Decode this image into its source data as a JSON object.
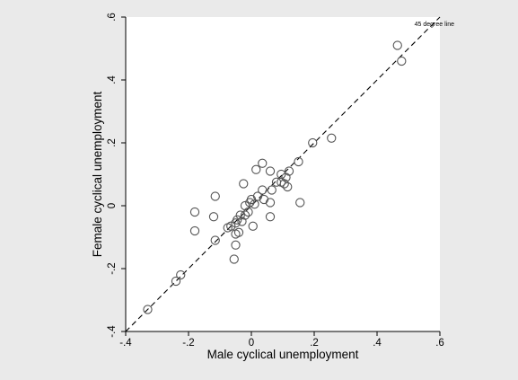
{
  "chart_data": {
    "type": "scatter",
    "title": "",
    "xlabel": "Male cyclical unemployment",
    "ylabel": "Female cyclical unemployment",
    "xlim": [
      -0.4,
      0.6
    ],
    "ylim": [
      -0.4,
      0.6
    ],
    "xticks": [
      -0.4,
      -0.2,
      0,
      0.2,
      0.4,
      0.6
    ],
    "xtick_labels": [
      "-.4",
      "-.2",
      "0",
      ".2",
      ".4",
      ".6"
    ],
    "yticks": [
      -0.4,
      -0.2,
      0,
      0.2,
      0.4,
      0.6
    ],
    "ytick_labels": [
      "-.4",
      "-.2",
      "0",
      ".2",
      ".4",
      ".6"
    ],
    "grid": false,
    "reference_line": {
      "label": "45 degree line",
      "style": "dashed",
      "from": [
        -0.4,
        -0.4
      ],
      "to": [
        0.6,
        0.6
      ]
    },
    "colors": {
      "background": "#eaeaea",
      "plot_area": "#ffffff",
      "marker": "#555555",
      "line": "#000000"
    },
    "points": [
      {
        "x": 0.465,
        "y": 0.51
      },
      {
        "x": 0.478,
        "y": 0.46
      },
      {
        "x": 0.255,
        "y": 0.215
      },
      {
        "x": 0.195,
        "y": 0.2
      },
      {
        "x": 0.15,
        "y": 0.14
      },
      {
        "x": 0.155,
        "y": 0.01
      },
      {
        "x": 0.12,
        "y": 0.11
      },
      {
        "x": 0.11,
        "y": 0.09
      },
      {
        "x": 0.105,
        "y": 0.07
      },
      {
        "x": 0.095,
        "y": 0.075
      },
      {
        "x": 0.095,
        "y": 0.1
      },
      {
        "x": 0.115,
        "y": 0.06
      },
      {
        "x": 0.06,
        "y": 0.11
      },
      {
        "x": 0.035,
        "y": 0.135
      },
      {
        "x": 0.015,
        "y": 0.115
      },
      {
        "x": 0.065,
        "y": 0.05
      },
      {
        "x": 0.08,
        "y": 0.075
      },
      {
        "x": 0.035,
        "y": 0.05
      },
      {
        "x": 0.06,
        "y": 0.01
      },
      {
        "x": 0.04,
        "y": 0.02
      },
      {
        "x": 0.02,
        "y": 0.03
      },
      {
        "x": 0.0,
        "y": 0.02
      },
      {
        "x": 0.01,
        "y": 0.005
      },
      {
        "x": -0.005,
        "y": 0.01
      },
      {
        "x": -0.02,
        "y": 0.0
      },
      {
        "x": -0.01,
        "y": -0.02
      },
      {
        "x": -0.02,
        "y": -0.03
      },
      {
        "x": -0.035,
        "y": -0.03
      },
      {
        "x": -0.045,
        "y": -0.045
      },
      {
        "x": -0.03,
        "y": -0.05
      },
      {
        "x": -0.05,
        "y": -0.055
      },
      {
        "x": -0.065,
        "y": -0.065
      },
      {
        "x": -0.04,
        "y": -0.085
      },
      {
        "x": -0.05,
        "y": -0.09
      },
      {
        "x": -0.075,
        "y": -0.07
      },
      {
        "x": -0.05,
        "y": -0.125
      },
      {
        "x": -0.055,
        "y": -0.17
      },
      {
        "x": 0.06,
        "y": -0.035
      },
      {
        "x": 0.005,
        "y": -0.065
      },
      {
        "x": -0.025,
        "y": 0.07
      },
      {
        "x": -0.115,
        "y": 0.03
      },
      {
        "x": -0.12,
        "y": -0.035
      },
      {
        "x": -0.18,
        "y": -0.02
      },
      {
        "x": -0.18,
        "y": -0.08
      },
      {
        "x": -0.115,
        "y": -0.11
      },
      {
        "x": -0.225,
        "y": -0.22
      },
      {
        "x": -0.24,
        "y": -0.24
      },
      {
        "x": -0.33,
        "y": -0.33
      }
    ]
  }
}
